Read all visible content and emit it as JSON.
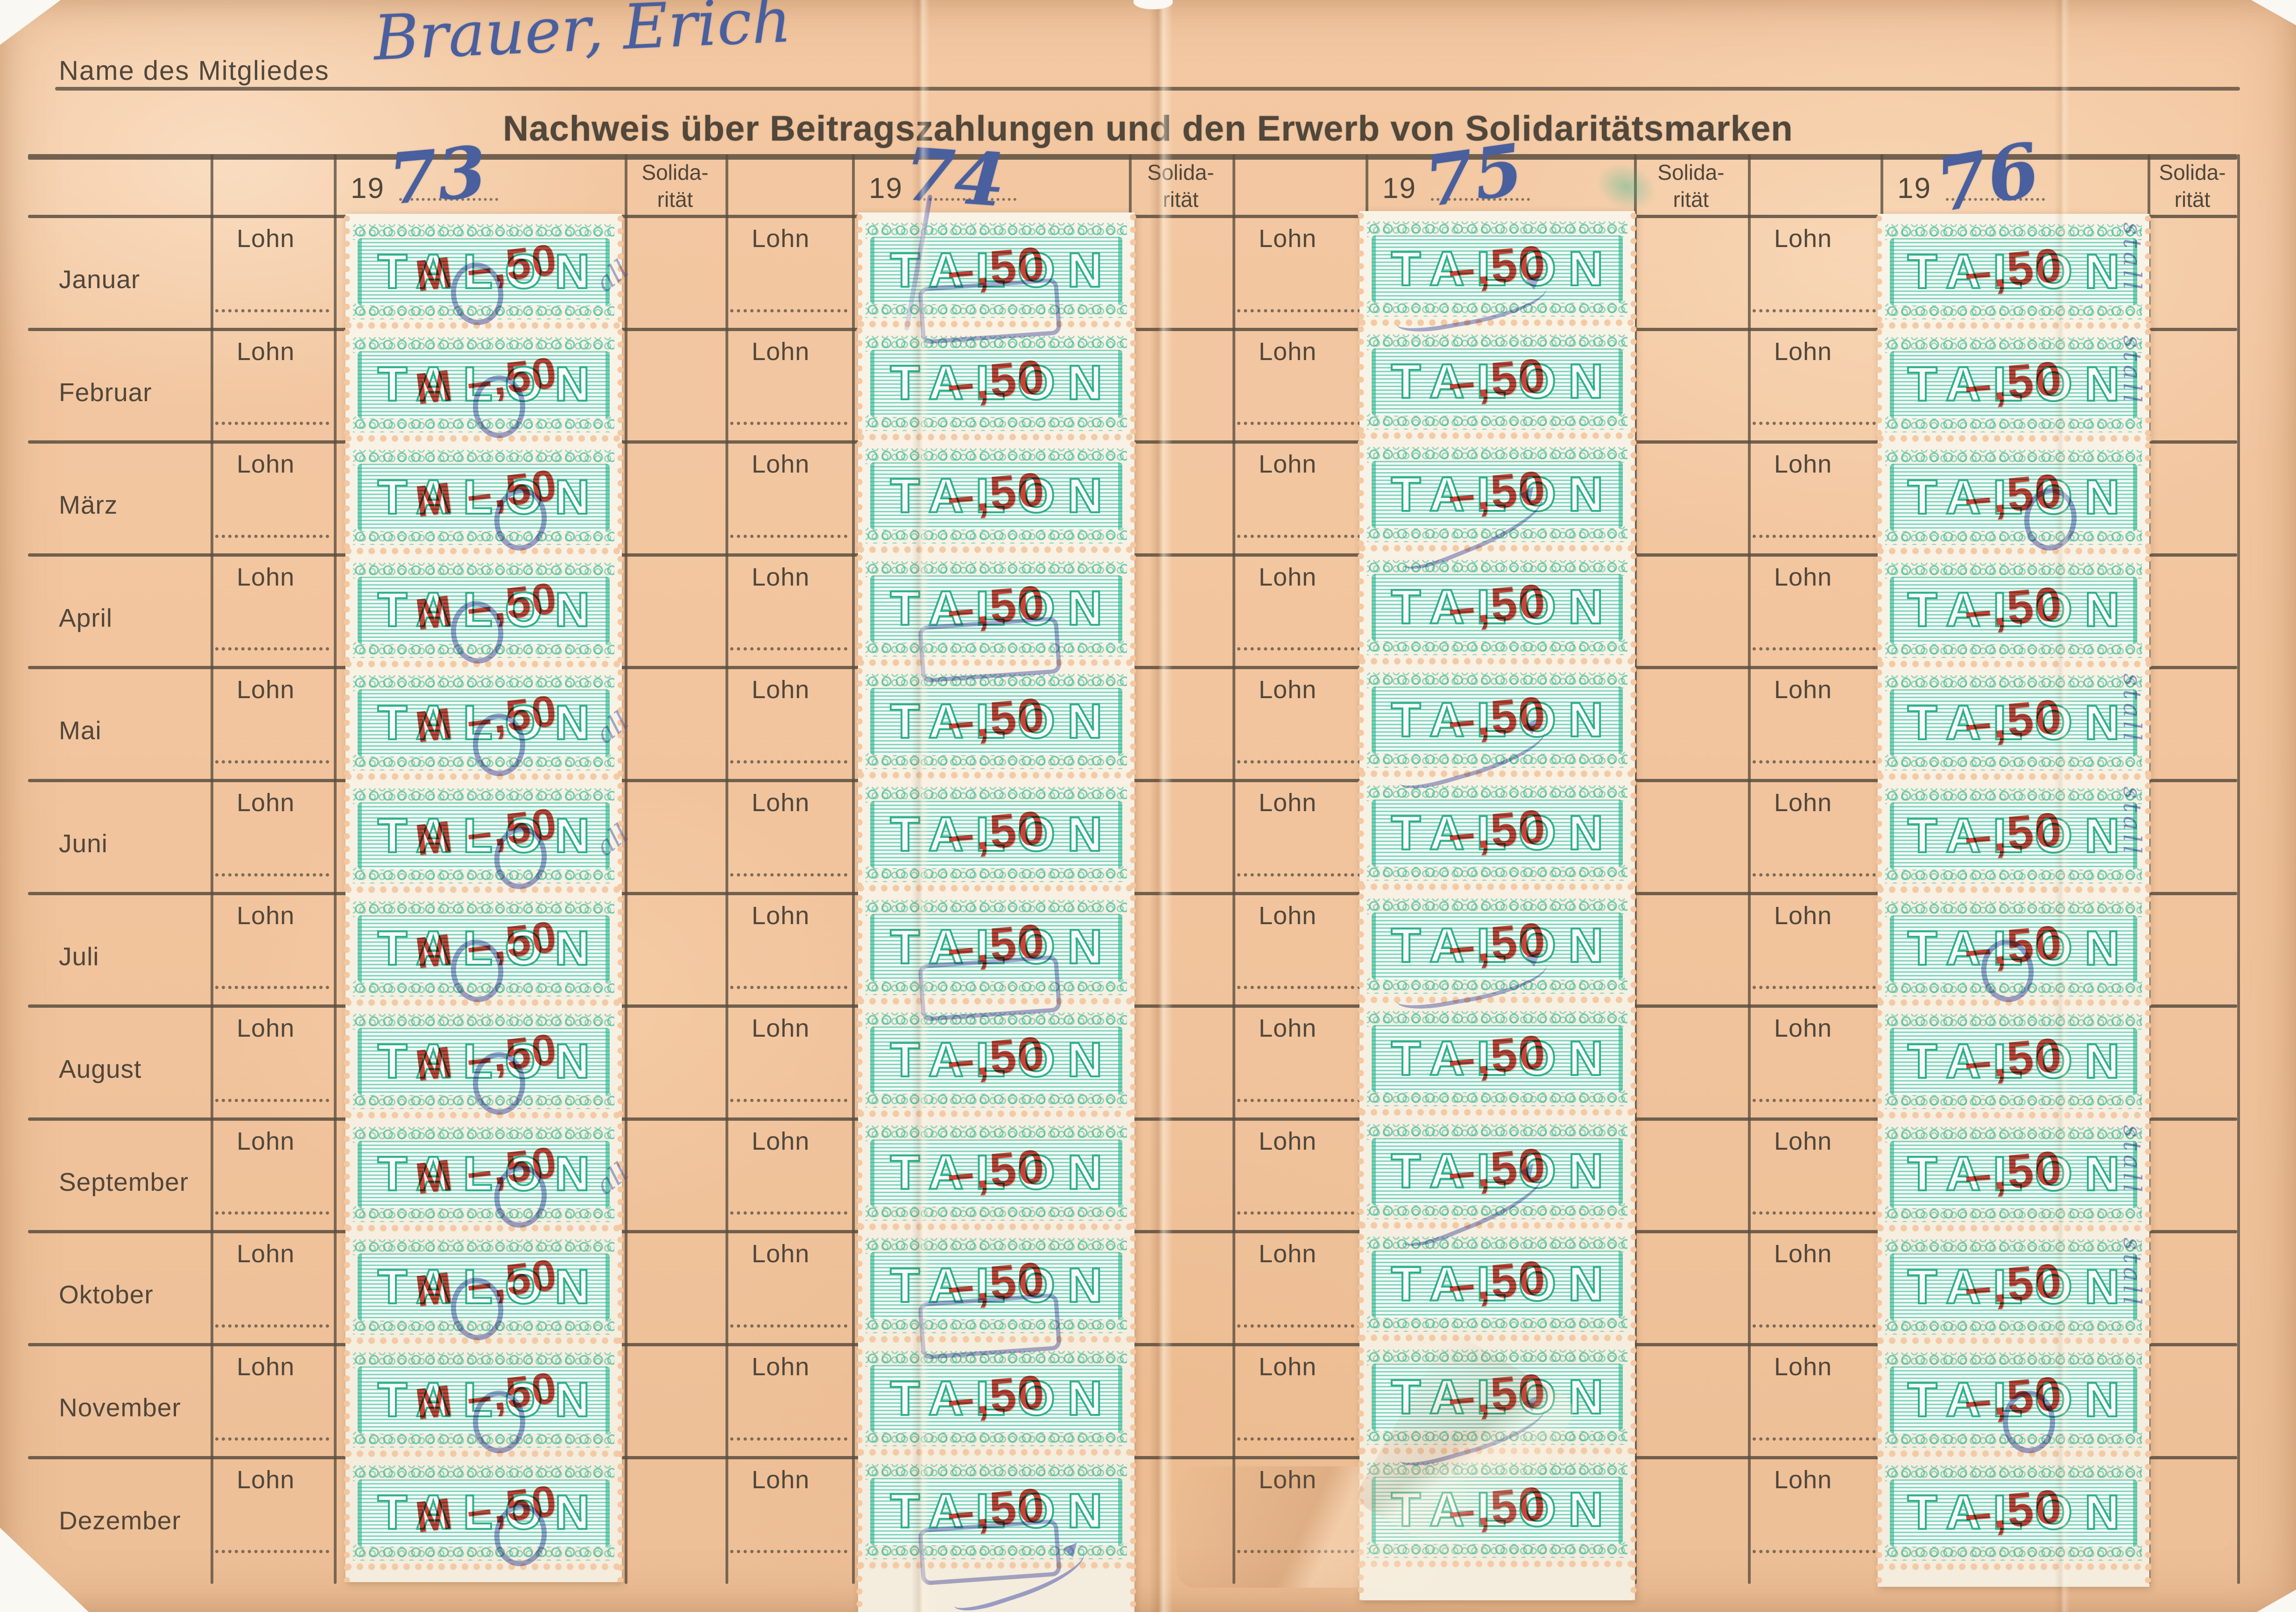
{
  "document": {
    "name_label": "Name des Mitgliedes",
    "member_name": "Brauer, Erich",
    "title": "Nachweis über Beitragszahlungen und den Erwerb von Solidaritätsmarken"
  },
  "table": {
    "year_prefix": "19",
    "wage_label": "Lohn",
    "solidarity_label": [
      "Solida-",
      "rität"
    ],
    "months": [
      "Januar",
      "Februar",
      "März",
      "April",
      "Mai",
      "Juni",
      "Juli",
      "August",
      "September",
      "Oktober",
      "November",
      "Dezember"
    ],
    "years": [
      {
        "handwritten_year": "73",
        "stamp_overprint": "M –,50",
        "cancel_text": "all"
      },
      {
        "handwritten_year": "74",
        "stamp_overprint": "–,50",
        "cancel_text": ""
      },
      {
        "handwritten_year": "75",
        "stamp_overprint": "–,50",
        "cancel_text": ""
      },
      {
        "handwritten_year": "76",
        "stamp_overprint": "–,50",
        "cancel_text": "stall"
      }
    ]
  },
  "stamp": {
    "text": "TALON"
  },
  "colors": {
    "paper": "#f3c8a2",
    "stamp_paper": "#f8f2e5",
    "stamp_green": "#2ab48e",
    "overprint_red": "#cd3327",
    "ink_blue": "#4a5f9d",
    "cancel_blue": "#4a54ac",
    "print_ink": "#51473b",
    "line_ink": "#5a4e40"
  }
}
